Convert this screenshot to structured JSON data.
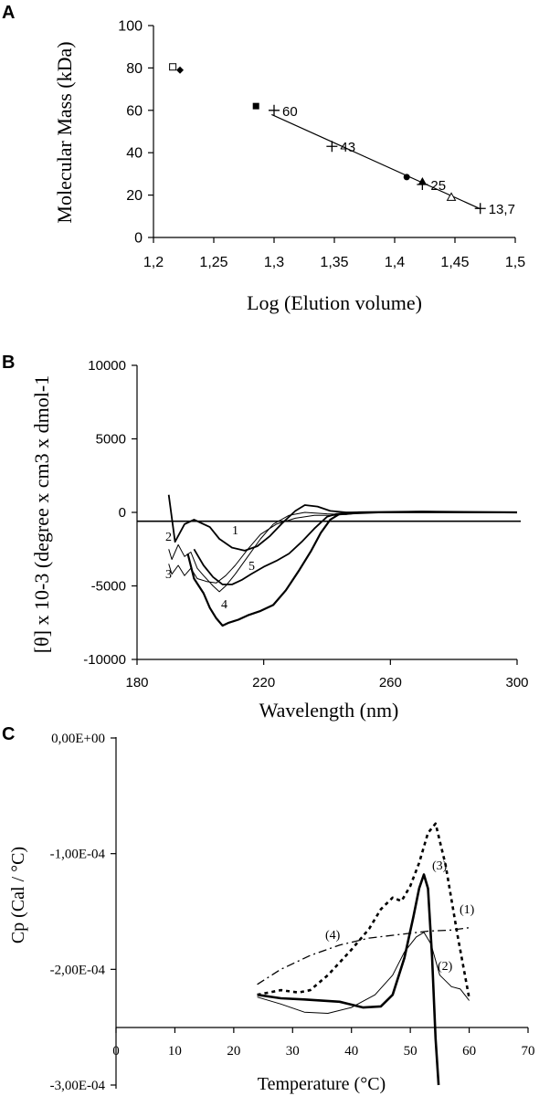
{
  "chart_data": [
    {
      "panel": "A",
      "type": "scatter",
      "xlabel": "Log (Elution volume)",
      "ylabel": "Molecular Mass (kDa)",
      "xlim": [
        1.2,
        1.5
      ],
      "ylim": [
        0,
        100
      ],
      "xticks": [
        "1,2",
        "1,25",
        "1,3",
        "1,35",
        "1,4",
        "1,45",
        "1,5"
      ],
      "yticks": [
        "0",
        "20",
        "40",
        "60",
        "80",
        "100"
      ],
      "grid": false,
      "standards": [
        {
          "x": 1.3,
          "y": 60,
          "label": "60"
        },
        {
          "x": 1.348,
          "y": 43,
          "label": "43"
        },
        {
          "x": 1.423,
          "y": 25,
          "label": "25"
        },
        {
          "x": 1.471,
          "y": 13.7,
          "label": "13,7"
        }
      ],
      "fit_line": [
        [
          1.298,
          58
        ],
        [
          1.471,
          13.5
        ]
      ],
      "samples": [
        {
          "x": 1.216,
          "y": 80.5,
          "marker": "open-square"
        },
        {
          "x": 1.222,
          "y": 79,
          "marker": "filled-diamond"
        },
        {
          "x": 1.285,
          "y": 62,
          "marker": "filled-square"
        },
        {
          "x": 1.41,
          "y": 28.5,
          "marker": "filled-circle"
        },
        {
          "x": 1.423,
          "y": 26.5,
          "marker": "filled-triangle"
        },
        {
          "x": 1.447,
          "y": 19,
          "marker": "open-triangle"
        }
      ]
    },
    {
      "panel": "B",
      "type": "line",
      "xlabel": "Wavelength (nm)",
      "ylabel": "[θ] x 10-3 (degree x cm3 x dmol-1",
      "xlim": [
        180,
        300
      ],
      "ylim": [
        -10000,
        10000
      ],
      "xticks": [
        "180",
        "220",
        "260",
        "300"
      ],
      "yticks": [
        "10000",
        "5000",
        "0",
        "-5000",
        "-10000"
      ],
      "grid": false,
      "baseline": -600,
      "series": [
        {
          "name": "1",
          "points": [
            [
              190,
              1200
            ],
            [
              192,
              -2000
            ],
            [
              195,
              -800
            ],
            [
              198,
              -500
            ],
            [
              203,
              -1000
            ],
            [
              206,
              -1800
            ],
            [
              210,
              -2400
            ],
            [
              214,
              -2600
            ],
            [
              218,
              -2300
            ],
            [
              222,
              -1600
            ],
            [
              226,
              -700
            ],
            [
              230,
              100
            ],
            [
              233,
              500
            ],
            [
              237,
              400
            ],
            [
              241,
              100
            ],
            [
              246,
              0
            ],
            [
              255,
              0
            ],
            [
              270,
              50
            ],
            [
              285,
              0
            ],
            [
              300,
              0
            ]
          ]
        },
        {
          "name": "2",
          "points": [
            [
              190,
              -2500
            ],
            [
              191,
              -3200
            ],
            [
              193,
              -2200
            ],
            [
              195,
              -3000
            ],
            [
              197,
              -2700
            ],
            [
              199,
              -3800
            ],
            [
              201,
              -4300
            ],
            [
              204,
              -5000
            ],
            [
              206,
              -5400
            ],
            [
              208,
              -5000
            ],
            [
              211,
              -4200
            ],
            [
              215,
              -3000
            ],
            [
              219,
              -1800
            ],
            [
              223,
              -800
            ],
            [
              228,
              -200
            ],
            [
              233,
              0
            ],
            [
              240,
              -100
            ],
            [
              246,
              -150
            ],
            [
              252,
              0
            ],
            [
              270,
              0
            ],
            [
              300,
              0
            ]
          ]
        },
        {
          "name": "3",
          "points": [
            [
              190,
              -3500
            ],
            [
              191,
              -4200
            ],
            [
              193,
              -3600
            ],
            [
              195,
              -4300
            ],
            [
              197,
              -3800
            ],
            [
              199,
              -4500
            ],
            [
              202,
              -4700
            ],
            [
              205,
              -4800
            ],
            [
              208,
              -4300
            ],
            [
              211,
              -3600
            ],
            [
              215,
              -2500
            ],
            [
              219,
              -1500
            ],
            [
              224,
              -800
            ],
            [
              230,
              -400
            ],
            [
              236,
              -200
            ],
            [
              242,
              -200
            ],
            [
              248,
              -100
            ],
            [
              260,
              0
            ],
            [
              300,
              0
            ]
          ]
        },
        {
          "name": "4",
          "points": [
            [
              196,
              -2800
            ],
            [
              198,
              -4500
            ],
            [
              201,
              -5500
            ],
            [
              203,
              -6500
            ],
            [
              205,
              -7200
            ],
            [
              207,
              -7700
            ],
            [
              209,
              -7500
            ],
            [
              212,
              -7300
            ],
            [
              215,
              -7000
            ],
            [
              219,
              -6700
            ],
            [
              223,
              -6300
            ],
            [
              227,
              -5300
            ],
            [
              231,
              -4000
            ],
            [
              235,
              -2600
            ],
            [
              238,
              -1400
            ],
            [
              241,
              -500
            ],
            [
              244,
              -100
            ],
            [
              250,
              0
            ],
            [
              270,
              50
            ],
            [
              300,
              0
            ]
          ]
        },
        {
          "name": "5",
          "points": [
            [
              198,
              -2500
            ],
            [
              201,
              -3600
            ],
            [
              204,
              -4400
            ],
            [
              207,
              -4900
            ],
            [
              210,
              -4900
            ],
            [
              213,
              -4600
            ],
            [
              216,
              -4200
            ],
            [
              220,
              -3700
            ],
            [
              224,
              -3300
            ],
            [
              228,
              -2800
            ],
            [
              232,
              -2000
            ],
            [
              236,
              -1100
            ],
            [
              240,
              -300
            ],
            [
              243,
              -100
            ],
            [
              250,
              0
            ],
            [
              270,
              0
            ],
            [
              300,
              0
            ]
          ]
        }
      ]
    },
    {
      "panel": "C",
      "type": "line",
      "xlabel": "Temperature (°C)",
      "ylabel": "Cp (Cal / °C)",
      "xlim": [
        0,
        70
      ],
      "ylim": [
        -0.0003,
        0
      ],
      "xaxis_crosses_at": -0.00025,
      "xticks": [
        "0",
        "10",
        "20",
        "30",
        "40",
        "50",
        "60",
        "70"
      ],
      "yticks": [
        "0,00E+00",
        "-1,00E-04",
        "-2,00E-04",
        "-3,00E-04"
      ],
      "grid": false,
      "series": [
        {
          "name": "(1)",
          "style": "thick-solid",
          "points": [
            [
              24,
              -0.000222
            ],
            [
              28,
              -0.000225
            ],
            [
              32,
              -0.000226
            ],
            [
              38,
              -0.000228
            ],
            [
              42,
              -0.000233
            ],
            [
              45,
              -0.000232
            ],
            [
              47,
              -0.000222
            ],
            [
              49,
              -0.00019
            ],
            [
              50.5,
              -0.000155
            ],
            [
              51.5,
              -0.00013
            ],
            [
              52.3,
              -0.000118
            ],
            [
              53,
              -0.00013
            ],
            [
              53.7,
              -0.00019
            ],
            [
              54.3,
              -0.00026
            ],
            [
              54.8,
              -0.0003
            ]
          ]
        },
        {
          "name": "(2)",
          "style": "thin-solid",
          "points": [
            [
              24,
              -0.000224
            ],
            [
              28,
              -0.00023
            ],
            [
              32,
              -0.000237
            ],
            [
              36,
              -0.000238
            ],
            [
              40,
              -0.000233
            ],
            [
              44,
              -0.000222
            ],
            [
              47,
              -0.000205
            ],
            [
              49,
              -0.000185
            ],
            [
              51,
              -0.000172
            ],
            [
              52.3,
              -0.000168
            ],
            [
              53.5,
              -0.000178
            ],
            [
              55,
              -0.000205
            ],
            [
              57,
              -0.000215
            ],
            [
              58.5,
              -0.000217
            ],
            [
              60,
              -0.000227
            ]
          ]
        },
        {
          "name": "(3)",
          "style": "dotted-heavy",
          "points": [
            [
              24,
              -0.000222
            ],
            [
              28,
              -0.000218
            ],
            [
              31,
              -0.00022
            ],
            [
              33,
              -0.000218
            ],
            [
              36,
              -0.000205
            ],
            [
              40,
              -0.000183
            ],
            [
              43,
              -0.000165
            ],
            [
              45,
              -0.000148
            ],
            [
              47,
              -0.000138
            ],
            [
              48.5,
              -0.000141
            ],
            [
              50,
              -0.000128
            ],
            [
              51.5,
              -0.000108
            ],
            [
              53,
              -8.2e-05
            ],
            [
              54.3,
              -7.4e-05
            ],
            [
              56,
              -0.00011
            ],
            [
              58,
              -0.00017
            ],
            [
              60,
              -0.000225
            ]
          ]
        },
        {
          "name": "(4)",
          "style": "dash-dot",
          "points": [
            [
              24,
              -0.000213
            ],
            [
              28,
              -0.0002
            ],
            [
              33,
              -0.000188
            ],
            [
              38,
              -0.000179
            ],
            [
              43,
              -0.000173
            ],
            [
              48,
              -0.00017
            ],
            [
              53,
              -0.000167
            ],
            [
              57,
              -0.000166
            ],
            [
              60,
              -0.000164
            ]
          ]
        }
      ]
    }
  ],
  "labels": {
    "A": "A",
    "B": "B",
    "C": "C"
  }
}
